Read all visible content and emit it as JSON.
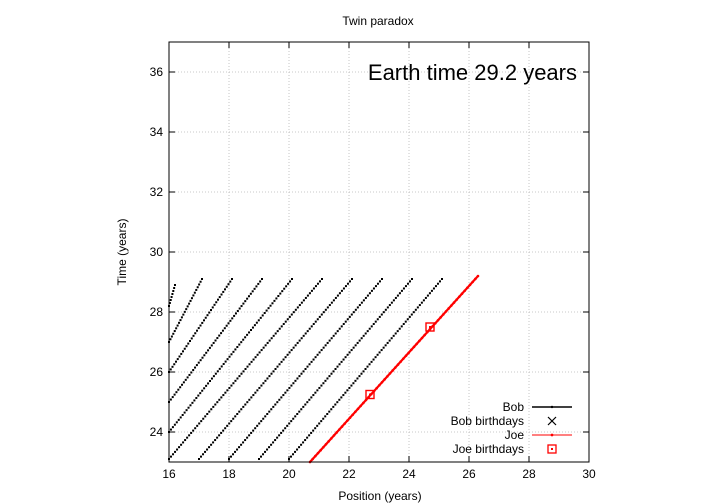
{
  "chart_data": {
    "type": "line",
    "title": "Twin paradox",
    "xlabel": "Position (years)",
    "ylabel": "Time (years)",
    "xlim": [
      16,
      30
    ],
    "ylim": [
      23,
      37
    ],
    "x_ticks": [
      16,
      18,
      20,
      22,
      24,
      26,
      28,
      30
    ],
    "y_ticks": [
      24,
      26,
      28,
      30,
      32,
      34,
      36
    ],
    "grid": true,
    "legend_position": "bottom-right",
    "annotation": "Earth time 29.2 years",
    "series": [
      {
        "name": "Bob",
        "color": "#000000",
        "style": "dotted diagonal worldlines",
        "segments": [
          [
            [
              16.0,
              28.2
            ],
            [
              16.2,
              28.9
            ]
          ],
          [
            [
              16.0,
              27.0
            ],
            [
              17.1,
              29.1
            ]
          ],
          [
            [
              16.0,
              26.0
            ],
            [
              18.1,
              29.1
            ]
          ],
          [
            [
              16.0,
              25.0
            ],
            [
              19.1,
              29.1
            ]
          ],
          [
            [
              16.0,
              24.0
            ],
            [
              20.1,
              29.1
            ]
          ],
          [
            [
              16.0,
              23.1
            ],
            [
              21.1,
              29.1
            ]
          ],
          [
            [
              17.0,
              23.1
            ],
            [
              22.1,
              29.1
            ]
          ],
          [
            [
              18.0,
              23.1
            ],
            [
              23.1,
              29.1
            ]
          ],
          [
            [
              19.0,
              23.1
            ],
            [
              24.1,
              29.1
            ]
          ],
          [
            [
              20.0,
              23.1
            ],
            [
              25.1,
              29.1
            ]
          ]
        ]
      },
      {
        "name": "Bob birthdays",
        "color": "#000000",
        "points": []
      },
      {
        "name": "Joe",
        "color": "#ff0000",
        "segments": [
          [
            [
              20.7,
              23.0
            ],
            [
              26.3,
              29.2
            ]
          ]
        ]
      },
      {
        "name": "Joe birthdays",
        "color": "#ff0000",
        "points": [
          [
            22.7,
            25.25
          ],
          [
            24.7,
            27.5
          ]
        ]
      }
    ]
  }
}
